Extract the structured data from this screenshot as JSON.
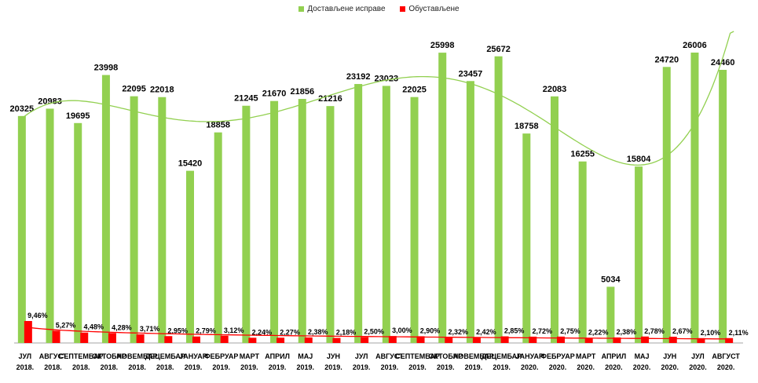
{
  "chart_data": {
    "type": "bar",
    "legend_position": "top-center",
    "grid": false,
    "categories": [
      [
        "ЈУЛ",
        "2018."
      ],
      [
        "АВГУСТ",
        "2018."
      ],
      [
        "СЕПТЕМБАР",
        "2018."
      ],
      [
        "ОКТОБАР",
        "2018."
      ],
      [
        "НОВЕМБАР",
        "2018."
      ],
      [
        "ДЕЦЕМБАР",
        "2018."
      ],
      [
        "ЈАНУАР",
        "2019."
      ],
      [
        "ФЕБРУАР",
        "2019."
      ],
      [
        "МАРТ",
        "2019."
      ],
      [
        "АПРИЛ",
        "2019."
      ],
      [
        "МАЈ",
        "2019."
      ],
      [
        "ЈУН",
        "2019."
      ],
      [
        "ЈУЛ",
        "2019."
      ],
      [
        "АВГУСТ",
        "2019."
      ],
      [
        "СЕПТЕМБАР",
        "2019."
      ],
      [
        "ОКТОБАР",
        "2019."
      ],
      [
        "НОВЕМБАР",
        "2019."
      ],
      [
        "ДЕЦЕМБАР",
        "2019."
      ],
      [
        "ЈАНУАР",
        "2020."
      ],
      [
        "ФЕБРУАР",
        "2020."
      ],
      [
        "МАРТ",
        "2020."
      ],
      [
        "АПРИЛ",
        "2020."
      ],
      [
        "МАЈ",
        "2020."
      ],
      [
        "ЈУН",
        "2020."
      ],
      [
        "ЈУЛ",
        "2020."
      ],
      [
        "АВГУСТ",
        "2020."
      ]
    ],
    "series": [
      {
        "name": "Достављене исправе",
        "color": "#92D050",
        "values": [
          20325,
          20983,
          19695,
          23998,
          22095,
          22018,
          15420,
          18858,
          21245,
          21670,
          21856,
          21216,
          23192,
          23023,
          22025,
          25998,
          23457,
          25672,
          18758,
          22083,
          16255,
          5034,
          15804,
          24720,
          26006,
          24460
        ],
        "labels": [
          "20325",
          "20983",
          "19695",
          "23998",
          "22095",
          "22018",
          "15420",
          "18858",
          "21245",
          "21670",
          "21856",
          "21216",
          "23192",
          "23023",
          "22025",
          "25998",
          "23457",
          "25672",
          "18758",
          "22083",
          "16255",
          "5034",
          "15804",
          "24720",
          "26006",
          "24460"
        ]
      },
      {
        "name": "Обустављене",
        "color": "#FF0000",
        "values": [
          9.46,
          5.27,
          4.48,
          4.28,
          3.71,
          2.95,
          2.79,
          3.12,
          2.24,
          2.27,
          2.38,
          2.18,
          2.5,
          3.0,
          2.9,
          2.32,
          2.42,
          2.85,
          2.72,
          2.75,
          2.22,
          2.38,
          2.78,
          2.67,
          2.1,
          2.11
        ],
        "labels": [
          "9,46%",
          "5,27%",
          "4,48%",
          "4,28%",
          "3,71%",
          "2,95%",
          "2,79%",
          "3,12%",
          "2,24%",
          "2,27%",
          "2,38%",
          "2,18%",
          "2,50%",
          "3,00%",
          "2,90%",
          "2,32%",
          "2,42%",
          "2,85%",
          "2,72%",
          "2,75%",
          "2,22%",
          "2,38%",
          "2,78%",
          "2,67%",
          "2,10%",
          "2,11%"
        ]
      }
    ],
    "trendline_color": "#92D050",
    "axis_color": "#A6A6A6"
  }
}
